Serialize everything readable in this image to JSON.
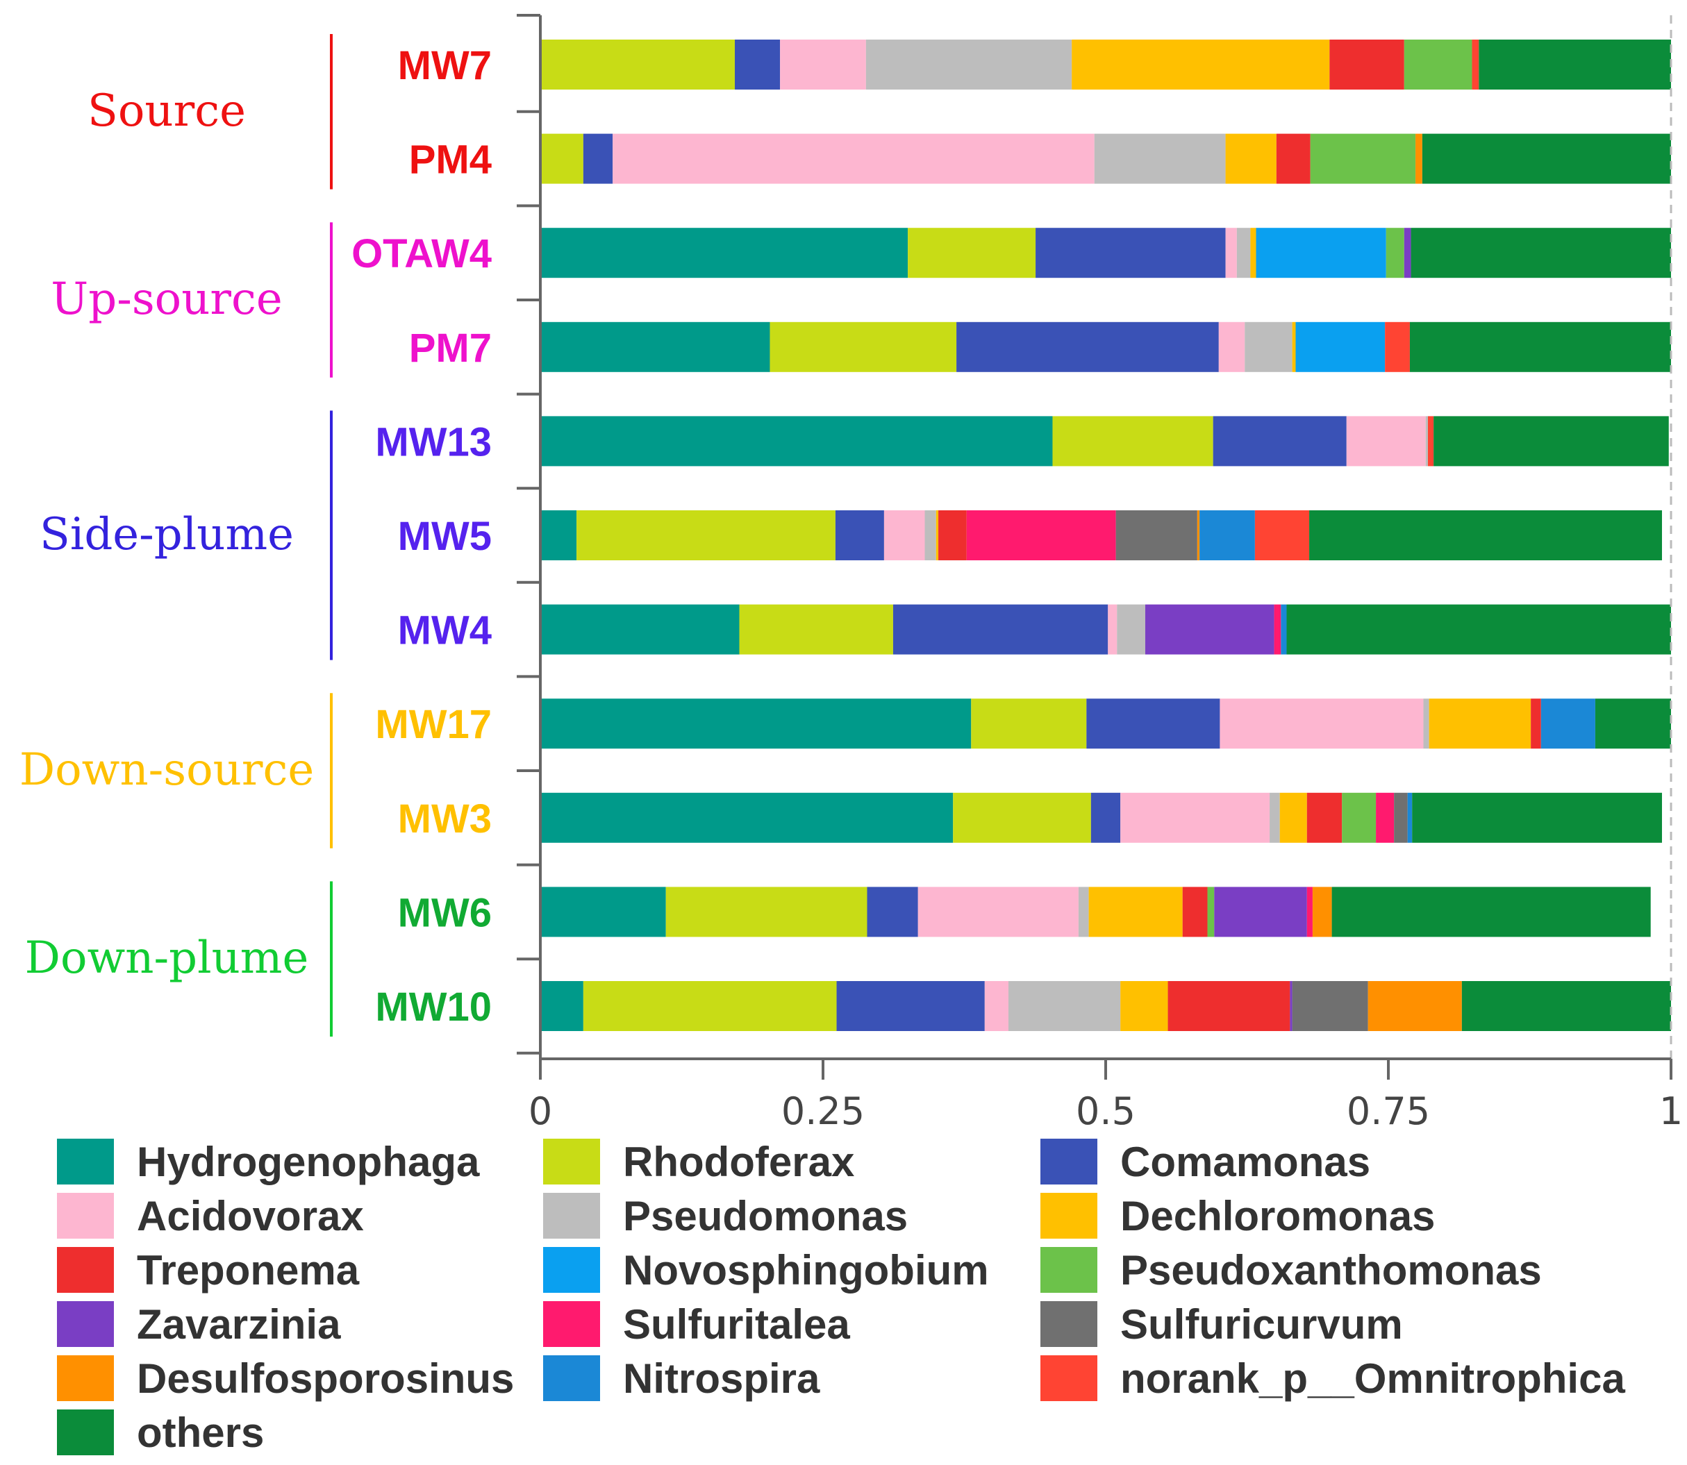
{
  "chart_data": {
    "type": "bar",
    "orientation": "horizontal",
    "stacked": true,
    "xlim": [
      0,
      1
    ],
    "x_ticks": [
      "0",
      "0.25",
      "0.5",
      "0.75",
      "1"
    ],
    "x_tick_values": [
      0,
      0.25,
      0.5,
      0.75,
      1
    ],
    "categories": [
      "MW7",
      "PM4",
      "OTAW4",
      "PM7",
      "MW13",
      "MW5",
      "MW4",
      "MW17",
      "MW3",
      "MW6",
      "MW10"
    ],
    "groups": [
      {
        "name": "Source",
        "color": "#ee1111",
        "samples": [
          "MW7",
          "PM4"
        ]
      },
      {
        "name": "Up-source",
        "color": "#ee11cc",
        "samples": [
          "OTAW4",
          "PM7"
        ]
      },
      {
        "name": "Side-plume",
        "color": "#3322dd",
        "samples": [
          "MW13",
          "MW5",
          "MW4"
        ]
      },
      {
        "name": "Down-source",
        "color": "#ffc000",
        "samples": [
          "MW17",
          "MW3"
        ]
      },
      {
        "name": "Down-plume",
        "color": "#11cc33",
        "samples": [
          "MW6",
          "MW10"
        ]
      }
    ],
    "label_colors": {
      "MW7": "#ee1111",
      "PM4": "#ee1111",
      "OTAW4": "#ee11cc",
      "PM7": "#ee11cc",
      "MW13": "#5522ee",
      "MW5": "#5522ee",
      "MW4": "#5522ee",
      "MW17": "#ffc000",
      "MW3": "#ffc000",
      "MW6": "#11aa33",
      "MW10": "#11aa33"
    },
    "series": [
      {
        "name": "Hydrogenophaga",
        "color": "#009a8a",
        "values": [
          0,
          0,
          0.325,
          0.203,
          0.453,
          0.032,
          0.176,
          0.381,
          0.365,
          0.111,
          0.038
        ]
      },
      {
        "name": "Rhodoferax",
        "color": "#c8dc16",
        "values": [
          0.172,
          0.038,
          0.113,
          0.165,
          0.142,
          0.229,
          0.136,
          0.102,
          0.122,
          0.178,
          0.224
        ]
      },
      {
        "name": "Comamonas",
        "color": "#3a52b6",
        "values": [
          0.04,
          0.026,
          0.168,
          0.232,
          0.118,
          0.043,
          0.19,
          0.118,
          0.026,
          0.045,
          0.131
        ]
      },
      {
        "name": "Acidovorax",
        "color": "#fdb6d0",
        "values": [
          0.076,
          0.426,
          0.01,
          0.023,
          0.07,
          0.036,
          0.008,
          0.18,
          0.132,
          0.142,
          0.021
        ]
      },
      {
        "name": "Pseudomonas",
        "color": "#bdbdbd",
        "values": [
          0.182,
          0.116,
          0.012,
          0.042,
          0.002,
          0.01,
          0.025,
          0.005,
          0.009,
          0.009,
          0.099
        ]
      },
      {
        "name": "Dechloromonas",
        "color": "#ffc000",
        "values": [
          0.228,
          0.045,
          0.005,
          0.003,
          0,
          0.002,
          0,
          0.09,
          0.024,
          0.083,
          0.042
        ]
      },
      {
        "name": "Treponema",
        "color": "#ee2e2e",
        "values": [
          0.066,
          0.03,
          0,
          0,
          0,
          0.025,
          0,
          0.009,
          0.031,
          0.022,
          0.108
        ]
      },
      {
        "name": "Novosphingobium",
        "color": "#0aa0f0",
        "values": [
          0,
          0,
          0.115,
          0.079,
          0,
          0,
          0,
          0,
          0,
          0,
          0
        ]
      },
      {
        "name": "Pseudoxanthomonas",
        "color": "#6cc24a",
        "values": [
          0.06,
          0.093,
          0.016,
          0,
          0,
          0,
          0,
          0,
          0.03,
          0.006,
          0
        ]
      },
      {
        "name": "Zavarzinia",
        "color": "#7a3ec4",
        "values": [
          0,
          0,
          0.006,
          0,
          0,
          0,
          0.114,
          0,
          0,
          0.082,
          0.002
        ]
      },
      {
        "name": "Sulfuritalea",
        "color": "#ff1a6e",
        "values": [
          0,
          0,
          0,
          0,
          0,
          0.132,
          0.006,
          0,
          0.016,
          0.005,
          0
        ]
      },
      {
        "name": "Sulfuricurvum",
        "color": "#707070",
        "values": [
          0,
          0,
          0,
          0,
          0,
          0.072,
          0,
          0,
          0.012,
          0,
          0.067
        ]
      },
      {
        "name": "Desulfosporosinus",
        "color": "#ff9000",
        "values": [
          0,
          0.006,
          0,
          0,
          0,
          0.002,
          0,
          0,
          0,
          0.017,
          0.083
        ]
      },
      {
        "name": "Nitrospira",
        "color": "#1b88d6",
        "values": [
          0,
          0,
          0,
          0,
          0,
          0.049,
          0.005,
          0.048,
          0.004,
          0,
          0
        ]
      },
      {
        "name": "norank_p__Omnitrophica",
        "color": "#ff4433",
        "values": [
          0.006,
          0,
          0,
          0.022,
          0.005,
          0.048,
          0,
          0,
          0,
          0,
          0
        ]
      },
      {
        "name": "others",
        "color": "#0b8c3a",
        "values": [
          0.17,
          0.22,
          0.23,
          0.231,
          0.208,
          0.312,
          0.34,
          0.067,
          0.221,
          0.282,
          0.185
        ]
      }
    ],
    "legend": {
      "placement": "bottom",
      "columns": 3,
      "entries": [
        "Hydrogenophaga",
        "Rhodoferax",
        "Comamonas",
        "Acidovorax",
        "Pseudomonas",
        "Dechloromonas",
        "Treponema",
        "Novosphingobium",
        "Pseudoxanthomonas",
        "Zavarzinia",
        "Sulfuritalea",
        "Sulfuricurvum",
        "Desulfosporosinus",
        "Nitrospira",
        "norank_p__Omnitrophica",
        "others"
      ]
    },
    "title": "",
    "xlabel": "",
    "ylabel": "",
    "grid": false
  }
}
